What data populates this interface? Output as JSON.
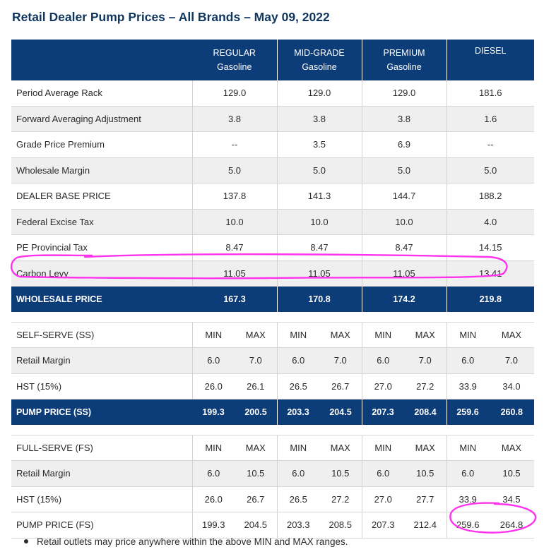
{
  "title": "Retail Dealer Pump Prices – All Brands – May 09, 2022",
  "columns": [
    {
      "name": "REGULAR",
      "sub": "Gasoline"
    },
    {
      "name": "MID-GRADE",
      "sub": "Gasoline"
    },
    {
      "name": "PREMIUM",
      "sub": "Gasoline"
    },
    {
      "name": "DIESEL",
      "sub": ""
    }
  ],
  "rows": [
    {
      "label": "Period Average Rack",
      "values": [
        "129.0",
        "129.0",
        "129.0",
        "181.6"
      ]
    },
    {
      "label": "Forward Averaging Adjustment",
      "values": [
        "3.8",
        "3.8",
        "3.8",
        "1.6"
      ]
    },
    {
      "label": "Grade Price Premium",
      "values": [
        "--",
        "3.5",
        "6.9",
        "--"
      ]
    },
    {
      "label": "Wholesale Margin",
      "values": [
        "5.0",
        "5.0",
        "5.0",
        "5.0"
      ]
    },
    {
      "label": "DEALER BASE PRICE",
      "values": [
        "137.8",
        "141.3",
        "144.7",
        "188.2"
      ]
    },
    {
      "label": "Federal Excise Tax",
      "values": [
        "10.0",
        "10.0",
        "10.0",
        "4.0"
      ]
    },
    {
      "label": "PE Provincial Tax",
      "values": [
        "8.47",
        "8.47",
        "8.47",
        "14.15"
      ]
    },
    {
      "label": "Carbon Levy",
      "values": [
        "11.05",
        "11.05",
        "11.05",
        "13.41"
      ]
    }
  ],
  "wholesale": {
    "label": "WHOLESALE PRICE",
    "values": [
      "167.3",
      "170.8",
      "174.2",
      "219.8"
    ]
  },
  "min_label": "MIN",
  "max_label": "MAX",
  "self_serve": {
    "header": "SELF-SERVE (SS)",
    "rows": [
      {
        "label": "Retail Margin",
        "values": [
          "6.0",
          "7.0",
          "6.0",
          "7.0",
          "6.0",
          "7.0",
          "6.0",
          "7.0"
        ]
      },
      {
        "label": "HST (15%)",
        "values": [
          "26.0",
          "26.1",
          "26.5",
          "26.7",
          "27.0",
          "27.2",
          "33.9",
          "34.0"
        ]
      }
    ],
    "pump": {
      "label": "PUMP PRICE (SS)",
      "values": [
        "199.3",
        "200.5",
        "203.3",
        "204.5",
        "207.3",
        "208.4",
        "259.6",
        "260.8"
      ]
    }
  },
  "full_serve": {
    "header": "FULL-SERVE (FS)",
    "rows": [
      {
        "label": "Retail Margin",
        "values": [
          "6.0",
          "10.5",
          "6.0",
          "10.5",
          "6.0",
          "10.5",
          "6.0",
          "10.5"
        ]
      },
      {
        "label": "HST (15%)",
        "values": [
          "26.0",
          "26.7",
          "26.5",
          "27.2",
          "27.0",
          "27.7",
          "33.9",
          "34.5"
        ]
      }
    ],
    "pump": {
      "label": "PUMP PRICE (FS)",
      "values": [
        "199.3",
        "204.5",
        "203.3",
        "208.5",
        "207.3",
        "212.4",
        "259.6",
        "264.8"
      ]
    }
  },
  "note": "Retail outlets may price anywhere within the above MIN and MAX ranges.",
  "colors": {
    "header_bg": "#0d3d78",
    "title": "#12375f",
    "highlight": "#ff33ee",
    "row_alt": "#efefef"
  }
}
